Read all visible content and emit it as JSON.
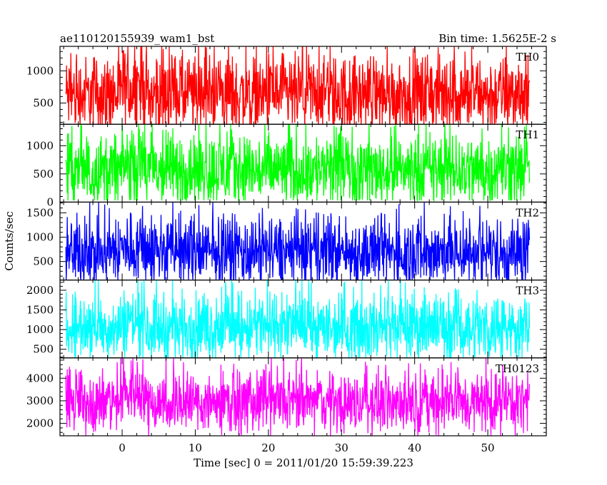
{
  "header": {
    "left_title": "ae110120155939_wam1_bst",
    "right_title": "Bin time: 1.5625E-2 s"
  },
  "chart_data": {
    "type": "line",
    "title": "ae110120155939_wam1_bst",
    "subtitle": "Bin time: 1.5625E-2 s",
    "xlabel": "Time [sec] 0 = 2011/01/20 15:59:39.223",
    "ylabel": "Counts/sec",
    "xlim": [
      -8.5,
      58
    ],
    "x_ticks": [
      0,
      10,
      20,
      30,
      40,
      50
    ],
    "x_data_range": [
      -7.7,
      55.7
    ],
    "bin_time": 0.015625,
    "grid": false,
    "panels": [
      {
        "name": "TH0",
        "color": "#ff0000",
        "ylim": [
          170,
          1380
        ],
        "y_ticks": [
          500,
          1000
        ],
        "baseline": 620,
        "spread": 300,
        "min": 100,
        "max": 1380
      },
      {
        "name": "TH1",
        "color": "#00ff00",
        "ylim": [
          0,
          1380
        ],
        "y_ticks": [
          0,
          500,
          1000
        ],
        "baseline": 560,
        "spread": 330,
        "min": 30,
        "max": 1380
      },
      {
        "name": "TH2",
        "color": "#0000ff",
        "ylim": [
          120,
          1720
        ],
        "y_ticks": [
          500,
          1000,
          1500
        ],
        "baseline": 680,
        "spread": 360,
        "min": 120,
        "max": 1720
      },
      {
        "name": "TH3",
        "color": "#00ffff",
        "ylim": [
          280,
          2260
        ],
        "y_ticks": [
          500,
          1000,
          1500,
          2000
        ],
        "baseline": 1050,
        "spread": 420,
        "min": 280,
        "max": 2260
      },
      {
        "name": "TH0123",
        "color": "#ff00ff",
        "ylim": [
          1450,
          4900
        ],
        "y_ticks": [
          2000,
          3000,
          4000
        ],
        "baseline": 2900,
        "spread": 650,
        "min": 1450,
        "max": 4900
      }
    ]
  }
}
